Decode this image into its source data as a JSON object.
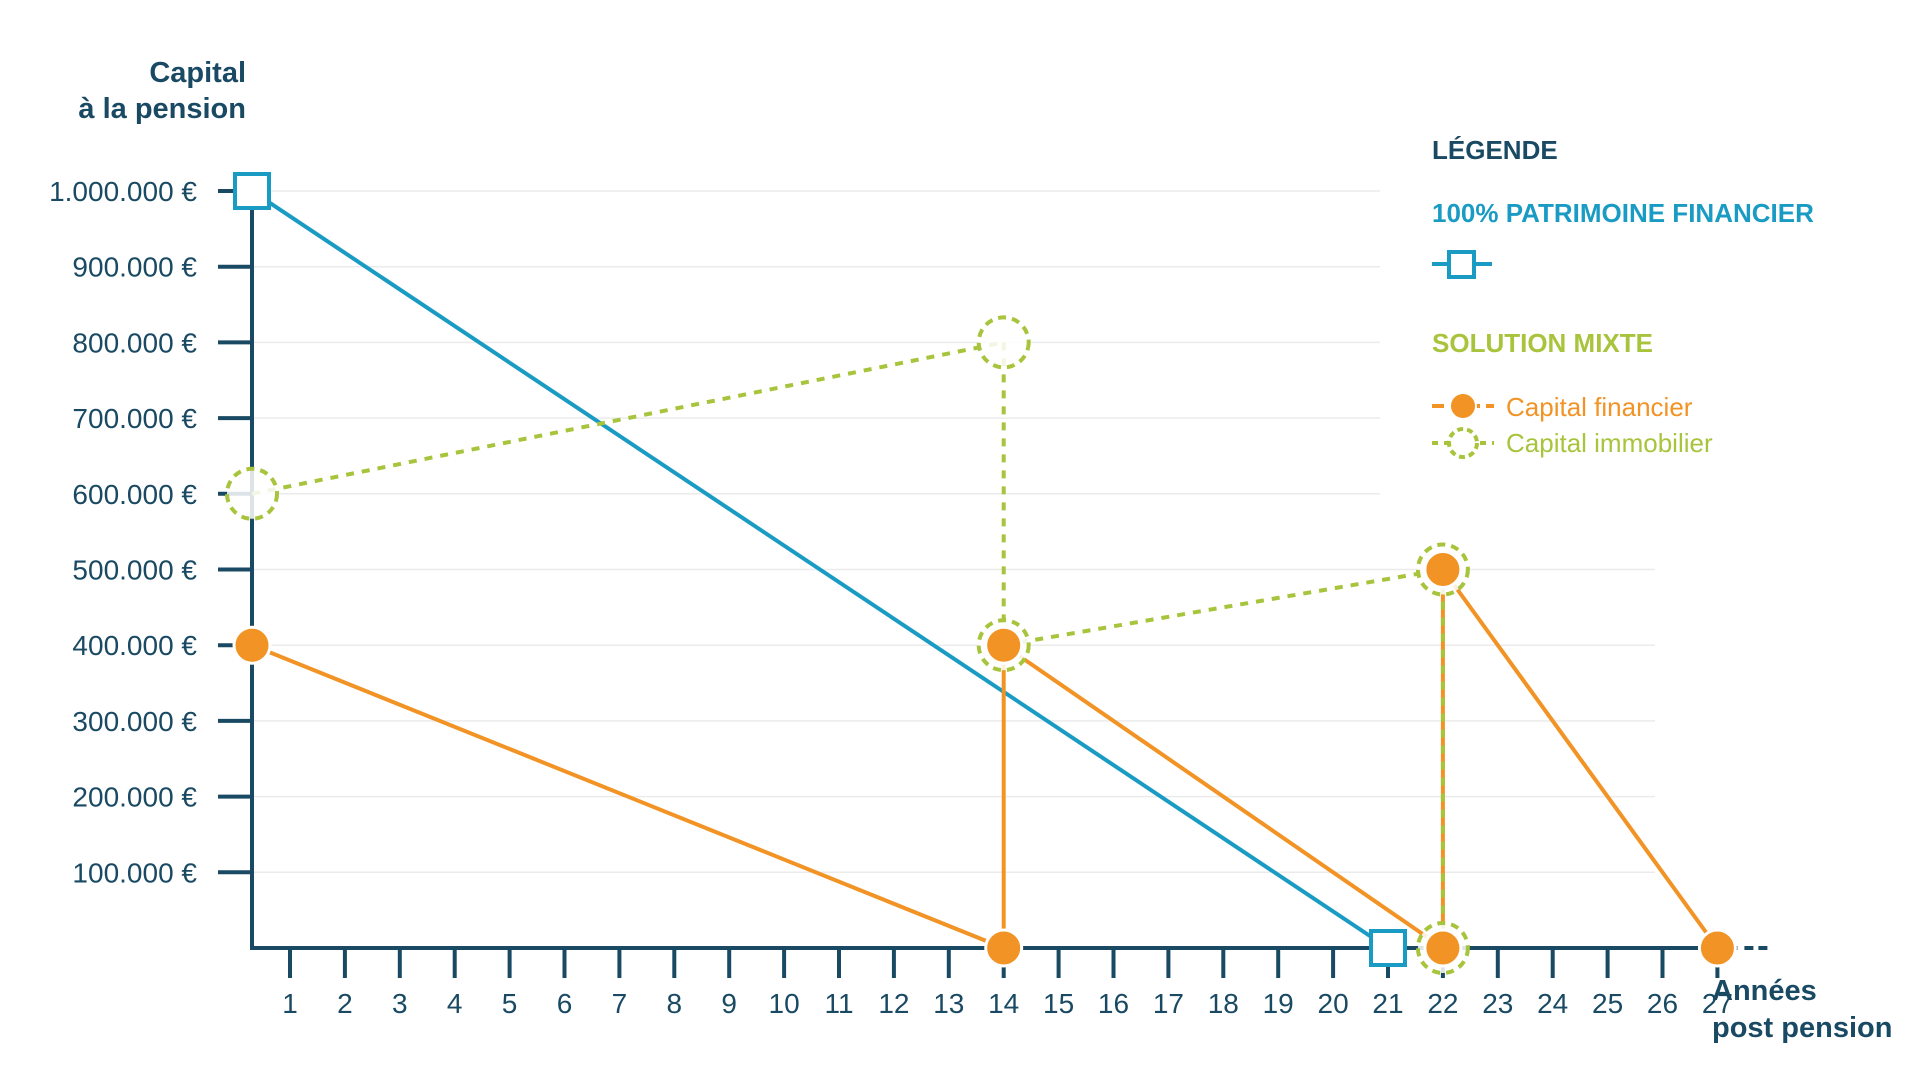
{
  "chart_data": {
    "type": "line",
    "ylabel_lines": [
      "Capital",
      "à la pension"
    ],
    "xlabel_lines": [
      "Années",
      "post pension"
    ],
    "y_ticks": [
      {
        "value": 1000000,
        "label": "1.000.000 €"
      },
      {
        "value": 900000,
        "label": "900.000 €"
      },
      {
        "value": 800000,
        "label": "800.000 €"
      },
      {
        "value": 700000,
        "label": "700.000 €"
      },
      {
        "value": 600000,
        "label": "600.000 €"
      },
      {
        "value": 500000,
        "label": "500.000 €"
      },
      {
        "value": 400000,
        "label": "400.000 €"
      },
      {
        "value": 300000,
        "label": "300.000 €"
      },
      {
        "value": 200000,
        "label": "200.000 €"
      },
      {
        "value": 100000,
        "label": "100.000 €"
      }
    ],
    "x_ticks": [
      1,
      2,
      3,
      4,
      5,
      6,
      7,
      8,
      9,
      10,
      11,
      12,
      13,
      14,
      15,
      16,
      17,
      18,
      19,
      20,
      21,
      22,
      23,
      24,
      25,
      26,
      27
    ],
    "xlim": [
      0.3,
      27
    ],
    "ylim": [
      0,
      1000000
    ],
    "grid": true,
    "legend": {
      "title": "LÉGENDE",
      "placement": "right",
      "groups": [
        {
          "heading": "100% PATRIMOINE FINANCIER",
          "entries": [
            {
              "series": "financier100",
              "label": ""
            }
          ]
        },
        {
          "heading": "SOLUTION MIXTE",
          "entries": [
            {
              "series": "capital_financier",
              "label": "Capital financier"
            },
            {
              "series": "capital_immobilier",
              "label": "Capital immobilier"
            }
          ]
        }
      ]
    },
    "series": [
      {
        "key": "financier100",
        "color": "#1a9bc3",
        "marker": "square",
        "segments": [
          [
            [
              0.3,
              1000000
            ],
            [
              21,
              0
            ]
          ]
        ]
      },
      {
        "key": "capital_financier",
        "name": "Capital financier",
        "color": "#f29325",
        "marker": "filled-circle",
        "segments": [
          [
            [
              0.3,
              400000
            ],
            [
              14,
              0
            ]
          ],
          [
            [
              14,
              0
            ],
            [
              14,
              400000
            ]
          ],
          [
            [
              14,
              400000
            ],
            [
              22,
              0
            ]
          ],
          [
            [
              22,
              0
            ],
            [
              22,
              500000
            ]
          ],
          [
            [
              22,
              500000
            ],
            [
              27,
              0
            ]
          ]
        ]
      },
      {
        "key": "capital_immobilier",
        "name": "Capital immobilier",
        "color": "#a8c43c",
        "marker": "dashed-circle",
        "segments": [
          [
            [
              0.3,
              600000
            ],
            [
              14,
              800000
            ]
          ],
          [
            [
              14,
              800000
            ],
            [
              14,
              400000
            ]
          ],
          [
            [
              14,
              400000
            ],
            [
              22,
              500000
            ]
          ],
          [
            [
              22,
              500000
            ],
            [
              22,
              0
            ]
          ]
        ]
      }
    ],
    "markers": [
      {
        "series": "financier100",
        "x": 0.3,
        "y": 1000000
      },
      {
        "series": "financier100",
        "x": 21,
        "y": 0
      },
      {
        "series": "capital_immobilier",
        "x": 0.3,
        "y": 600000
      },
      {
        "series": "capital_immobilier",
        "x": 14,
        "y": 800000
      },
      {
        "series": "capital_immobilier",
        "x": 14,
        "y": 400000
      },
      {
        "series": "capital_immobilier",
        "x": 22,
        "y": 500000
      },
      {
        "series": "capital_immobilier",
        "x": 22,
        "y": 0
      },
      {
        "series": "capital_financier",
        "x": 0.3,
        "y": 400000
      },
      {
        "series": "capital_financier",
        "x": 14,
        "y": 0
      },
      {
        "series": "capital_financier",
        "x": 14,
        "y": 400000
      },
      {
        "series": "capital_financier",
        "x": 22,
        "y": 500000
      },
      {
        "series": "capital_financier",
        "x": 22,
        "y": 0
      },
      {
        "series": "capital_financier",
        "x": 27,
        "y": 0
      }
    ],
    "colors": {
      "axis": "#1a4a63",
      "grid": "#ebebeb",
      "blue": "#1a9bc3",
      "orange": "#f29325",
      "green": "#a8c43c"
    }
  }
}
